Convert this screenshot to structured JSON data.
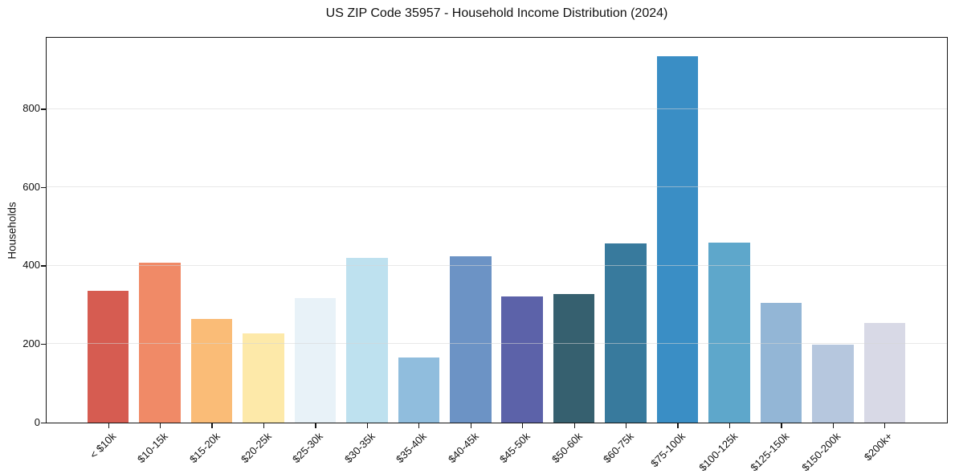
{
  "title": "US ZIP Code 35957 - Household Income Distribution (2024)",
  "chart_data": {
    "type": "bar",
    "title": "US ZIP Code 35957 - Household Income Distribution (2024)",
    "xlabel": "",
    "ylabel": "Households",
    "categories": [
      "< $10k",
      "$10-15k",
      "$15-20k",
      "$20-25k",
      "$25-30k",
      "$30-35k",
      "$35-40k",
      "$40-45k",
      "$45-50k",
      "$50-60k",
      "$60-75k",
      "$75-100k",
      "$100-125k",
      "$125-150k",
      "$150-200k",
      "$200k+"
    ],
    "values": [
      337,
      409,
      264,
      227,
      317,
      420,
      166,
      425,
      322,
      329,
      457,
      935,
      460,
      306,
      198,
      255
    ],
    "bar_colors": [
      "#d65c51",
      "#f08a67",
      "#fabc77",
      "#fde9a9",
      "#e8f2f8",
      "#bee1ef",
      "#90bddd",
      "#6c93c5",
      "#5c62a9",
      "#36606f",
      "#387a9d",
      "#3a8ec5",
      "#5ea7cb",
      "#93b6d6",
      "#b6c7de",
      "#d8d9e6"
    ],
    "yticks": [
      0,
      200,
      400,
      600,
      800
    ],
    "ylim": [
      0,
      980
    ],
    "grid": "horizontal",
    "grid_color": "#e8e8e8",
    "legend": "none",
    "x_tick_rotation_deg": 45,
    "frame_color": "#151515",
    "background_color": "#ffffff"
  }
}
